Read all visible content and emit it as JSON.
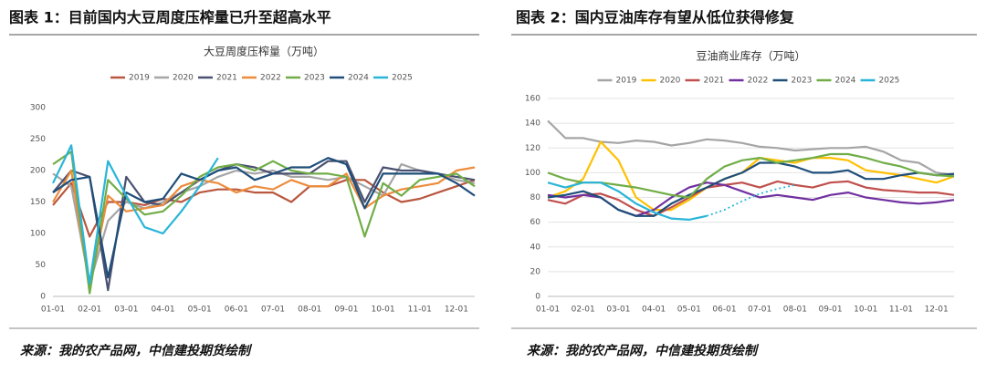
{
  "chart_data": [
    {
      "type": "line",
      "caption": "图表 1：目前国内大豆周度压榨量已升至超高水平",
      "title": "大豆周度压榨量（万吨）",
      "source": "来源：我的农产品网，中信建投期货绘制",
      "categories": [
        "01-01",
        null,
        "02-01",
        null,
        "03-01",
        null,
        "04-01",
        null,
        "05-01",
        null,
        "06-01",
        null,
        "07-01",
        null,
        "08-01",
        null,
        "09-01",
        null,
        "10-01",
        null,
        "11-01",
        null,
        "12-01",
        null
      ],
      "ylim": [
        0,
        300
      ],
      "yticks": [
        0,
        50,
        100,
        150,
        200,
        250,
        300
      ],
      "grid": false,
      "series": [
        {
          "name": "2019",
          "color": "#b9573f",
          "values": [
            145,
            180,
            95,
            150,
            150,
            145,
            155,
            150,
            165,
            170,
            170,
            165,
            165,
            150,
            175,
            175,
            185,
            185,
            165,
            150,
            155,
            165,
            175,
            185
          ]
        },
        {
          "name": "2020",
          "color": "#a5a5a5",
          "values": [
            195,
            175,
            20,
            120,
            150,
            140,
            150,
            165,
            175,
            190,
            200,
            195,
            200,
            190,
            190,
            185,
            190,
            175,
            160,
            210,
            200,
            195,
            185,
            180
          ]
        },
        {
          "name": "2021",
          "color": "#4a5170",
          "values": [
            165,
            200,
            190,
            10,
            190,
            150,
            145,
            165,
            185,
            200,
            210,
            205,
            195,
            195,
            195,
            215,
            215,
            150,
            205,
            200,
            200,
            195,
            190,
            185
          ]
        },
        {
          "name": "2022",
          "color": "#ed8b3a",
          "values": [
            150,
            200,
            15,
            160,
            135,
            140,
            145,
            175,
            185,
            180,
            165,
            175,
            170,
            185,
            175,
            175,
            195,
            140,
            160,
            170,
            175,
            180,
            200,
            205
          ]
        },
        {
          "name": "2023",
          "color": "#70ad47",
          "values": [
            210,
            230,
            5,
            185,
            155,
            130,
            135,
            160,
            190,
            205,
            210,
            200,
            215,
            200,
            195,
            195,
            190,
            95,
            180,
            160,
            185,
            190,
            195,
            175
          ]
        },
        {
          "name": "2024",
          "color": "#1f4e79",
          "values": [
            165,
            185,
            190,
            30,
            165,
            150,
            155,
            195,
            185,
            200,
            205,
            185,
            195,
            205,
            205,
            220,
            210,
            140,
            195,
            195,
            195,
            195,
            180,
            160
          ]
        },
        {
          "name": "2025",
          "color": "#2ab5d8",
          "values": [
            180,
            240,
            20,
            215,
            160,
            110,
            100,
            135,
            175,
            220,
            null,
            null,
            null,
            null,
            null,
            null,
            null,
            null,
            null,
            null,
            null,
            null,
            null,
            null
          ]
        }
      ]
    },
    {
      "type": "line",
      "caption": "图表 2：国内豆油库存有望从低位获得修复",
      "title": "豆油商业库存（万吨）",
      "source": "来源：我的农产品网，中信建投期货绘制",
      "categories": [
        "01-01",
        null,
        "02-01",
        null,
        "03-01",
        null,
        "04-01",
        null,
        "05-01",
        null,
        "06-01",
        null,
        "07-01",
        null,
        "08-01",
        null,
        "09-01",
        null,
        "10-01",
        null,
        "11-01",
        null,
        "12-01",
        null
      ],
      "ylim": [
        0,
        160
      ],
      "yticks": [
        0,
        20,
        40,
        60,
        80,
        100,
        120,
        140,
        160
      ],
      "grid": true,
      "series": [
        {
          "name": "2019",
          "color": "#a5a5a5",
          "values": [
            142,
            128,
            128,
            125,
            124,
            126,
            125,
            122,
            124,
            127,
            126,
            124,
            121,
            120,
            118,
            119,
            120,
            120,
            121,
            117,
            110,
            108,
            100,
            98
          ]
        },
        {
          "name": "2020",
          "color": "#ffc000",
          "values": [
            80,
            85,
            95,
            125,
            110,
            80,
            70,
            70,
            78,
            88,
            95,
            100,
            112,
            110,
            108,
            112,
            112,
            110,
            102,
            100,
            98,
            95,
            92,
            97
          ]
        },
        {
          "name": "2021",
          "color": "#c0504d",
          "values": [
            78,
            75,
            82,
            83,
            78,
            70,
            65,
            72,
            80,
            88,
            90,
            92,
            88,
            93,
            90,
            88,
            92,
            93,
            88,
            86,
            85,
            84,
            84,
            82
          ]
        },
        {
          "name": "2022",
          "color": "#7030a0",
          "values": [
            82,
            80,
            82,
            80,
            70,
            65,
            70,
            80,
            88,
            92,
            90,
            85,
            80,
            82,
            80,
            78,
            82,
            84,
            80,
            78,
            76,
            75,
            76,
            78
          ]
        },
        {
          "name": "2023",
          "color": "#1f4e79",
          "values": [
            80,
            82,
            85,
            80,
            70,
            65,
            65,
            75,
            82,
            88,
            95,
            100,
            108,
            108,
            105,
            100,
            100,
            102,
            95,
            95,
            98,
            100,
            98,
            99
          ]
        },
        {
          "name": "2024",
          "color": "#70ad47",
          "values": [
            100,
            95,
            92,
            92,
            90,
            88,
            85,
            82,
            80,
            95,
            105,
            110,
            112,
            108,
            110,
            112,
            115,
            115,
            112,
            108,
            105,
            100,
            98,
            97
          ]
        },
        {
          "name": "2025",
          "color": "#2ab5d8",
          "values": [
            92,
            88,
            92,
            92,
            85,
            75,
            68,
            63,
            62,
            65,
            null,
            null,
            null,
            null,
            null,
            null,
            null,
            null,
            null,
            null,
            null,
            null,
            null,
            null
          ]
        }
      ],
      "projection": {
        "color": "#2ab5d8",
        "values": [
          null,
          null,
          null,
          null,
          null,
          null,
          null,
          null,
          null,
          65,
          70,
          77,
          83,
          87,
          90,
          null,
          null,
          null,
          null,
          null,
          null,
          null,
          null,
          null
        ]
      }
    }
  ]
}
